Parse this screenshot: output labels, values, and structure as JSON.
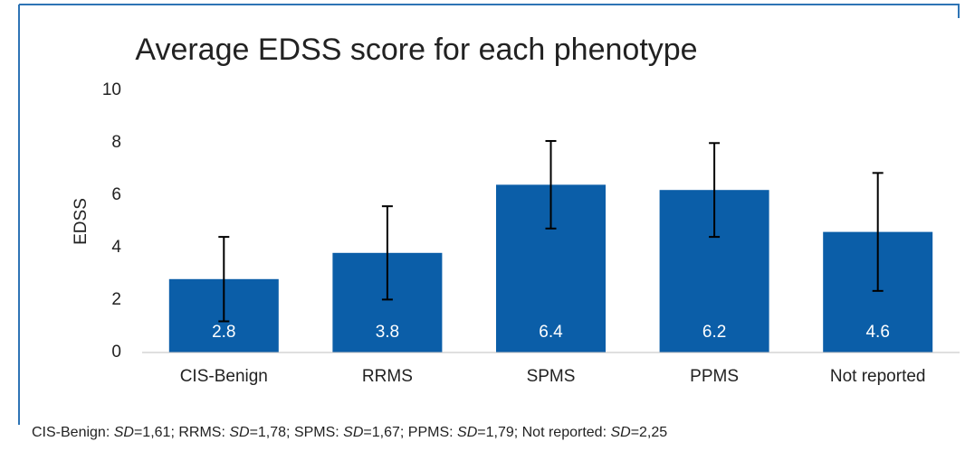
{
  "chart_data": {
    "type": "bar",
    "title": "Average  EDSS score for each phenotype",
    "y_label": "EDSS",
    "categories": [
      "CIS-Benign",
      "RRMS",
      "SPMS",
      "PPMS",
      "Not reported"
    ],
    "series": [
      {
        "color": "#0b5ea8",
        "values": [
          2.8,
          3.8,
          6.4,
          6.2,
          4.6
        ],
        "errors": [
          1.61,
          1.78,
          1.67,
          1.79,
          2.25
        ]
      }
    ],
    "ylim": [
      0,
      10
    ],
    "yticks": [
      0,
      2,
      4,
      6,
      8,
      10
    ],
    "grid": false,
    "data_labels": true,
    "footnote": [
      "CIS-Benign: ",
      "SD",
      "=1,61; RRMS: ",
      "SD",
      "=1,78; SPMS: ",
      "SD",
      "=1,67; PPMS: ",
      "SD",
      "=1,79; Not reported: ",
      "SD",
      "=2,25"
    ]
  }
}
